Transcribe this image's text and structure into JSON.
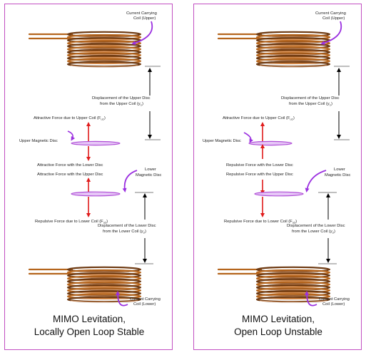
{
  "colors": {
    "border": "#c24fc2",
    "coil": "#b5651d",
    "coil_dark": "#6e3a12",
    "disc": "#b04fd6",
    "callout_arrow": "#9b30e0",
    "force_arrow": "#e01b1b",
    "dimension_arrow": "#000000"
  },
  "panels": [
    {
      "upper_coil_label_1": "Current Carrying",
      "upper_coil_label_2": "Coil (Upper)",
      "upper_disp_label_1": "Displacement of the Upper Disc",
      "upper_disp_label_2": "from the Upper Coil (y",
      "upper_disp_sub": "1",
      "force_upper_1_main": "Attractive Force due to Upper Coil (F",
      "force_upper_1_sub": "u1",
      "upper_disc_label": "Upper Magnetic Disc",
      "force_between_upper": "Attractive Force with the Lower Disc",
      "force_between_lower": "Attractive Force with the Upper Disc",
      "lower_disc_label_1": "Lower",
      "lower_disc_label_2": "Magnetic Disc",
      "force_lower_coil_main": "Repulsive Force due to Lower Coil (F",
      "force_lower_coil_sub": "u2",
      "lower_disp_label_1": "Displacement of the Lower Disc",
      "lower_disp_label_2": "from the Lower Coil (y",
      "lower_disp_sub": "2",
      "lower_coil_label_1": "Current Carrying",
      "lower_coil_label_2": "Coil (Lower)",
      "caption_1": "MIMO Levitation,",
      "caption_2": "Locally Open Loop Stable"
    },
    {
      "upper_coil_label_1": "Current Carrying",
      "upper_coil_label_2": "Coil (Upper)",
      "upper_disp_label_1": "Displacement of the Upper Disc",
      "upper_disp_label_2": "from the Upper Coil (y",
      "upper_disp_sub": "1",
      "force_upper_1_main": "Attractive Force due to Upper Coil (F",
      "force_upper_1_sub": "u1",
      "upper_disc_label": "Upper Magnetic Disc",
      "force_between_upper": "Repulsive Force with the Lower Disc",
      "force_between_lower": "Repulsive Force with the Upper Disc",
      "lower_disc_label_1": "Lower",
      "lower_disc_label_2": "Magnetic Disc",
      "force_lower_coil_main": "Repulsive Force due to Lower Coil (F",
      "force_lower_coil_sub": "u2",
      "lower_disp_label_1": "Displacement of the Lower Disc",
      "lower_disp_label_2": "from the Lower Coil (y",
      "lower_disp_sub": "2",
      "lower_coil_label_1": "Current Carrying",
      "lower_coil_label_2": "Coil (Lower)",
      "caption_1": "MIMO Levitation,",
      "caption_2": "Open Loop Unstable"
    }
  ]
}
